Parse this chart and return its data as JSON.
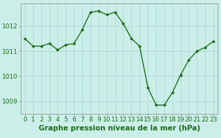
{
  "x": [
    0,
    1,
    2,
    3,
    4,
    5,
    6,
    7,
    8,
    9,
    10,
    11,
    12,
    13,
    14,
    15,
    16,
    17,
    18,
    19,
    20,
    21,
    22,
    23
  ],
  "y": [
    1011.5,
    1011.2,
    1011.2,
    1011.3,
    1011.05,
    1011.25,
    1011.3,
    1011.85,
    1012.55,
    1012.6,
    1012.45,
    1012.55,
    1012.1,
    1011.5,
    1011.2,
    1009.55,
    1008.85,
    1008.85,
    1009.35,
    1010.05,
    1010.65,
    1011.0,
    1011.15,
    1011.4
  ],
  "line_color": "#1a6b1a",
  "marker": "D",
  "marker_size": 2.5,
  "bg_color": "#cceee8",
  "plot_bg_color": "#cceee8",
  "grid_color": "#aadddd",
  "xlabel": "Graphe pression niveau de la mer (hPa)",
  "xlabel_fontsize": 7.5,
  "ylim": [
    1008.5,
    1012.9
  ],
  "yticks": [
    1009,
    1010,
    1011,
    1012
  ],
  "xticks": [
    0,
    1,
    2,
    3,
    4,
    5,
    6,
    7,
    8,
    9,
    10,
    11,
    12,
    13,
    14,
    15,
    16,
    17,
    18,
    19,
    20,
    21,
    22,
    23
  ],
  "tick_fontsize": 6.5,
  "spine_color": "#888888",
  "line_width": 1.0,
  "fig_width": 3.2,
  "fig_height": 2.0,
  "dpi": 100
}
